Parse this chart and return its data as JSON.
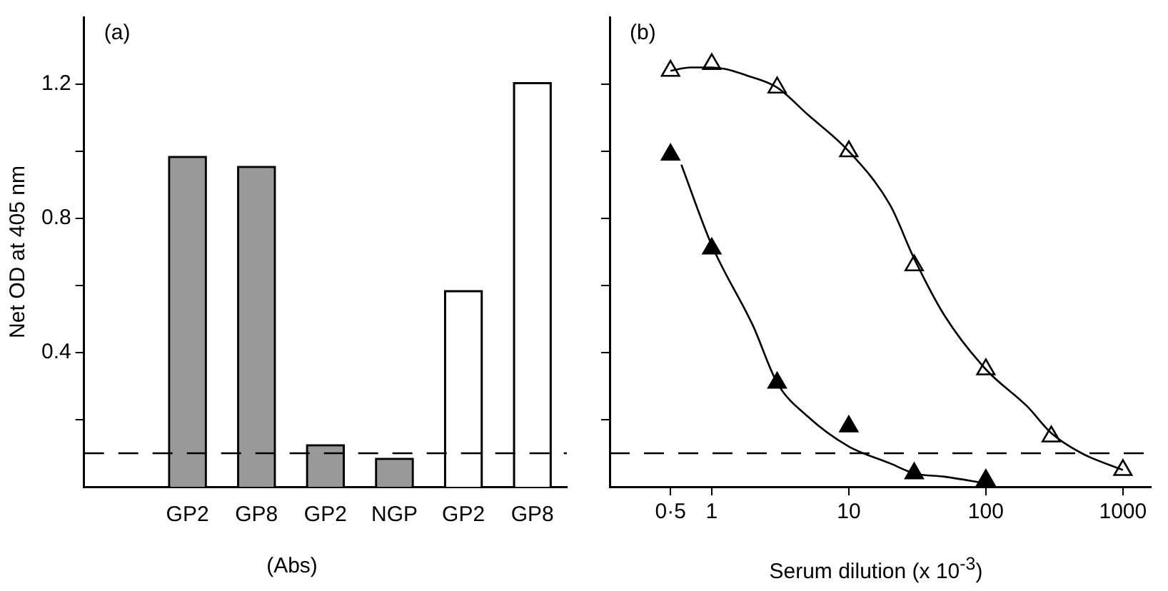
{
  "chart_data": [
    {
      "type": "bar",
      "annotations": [
        "(a)"
      ],
      "categories": [
        null,
        "GP2",
        "GP8",
        "GP2",
        "NGP",
        "GP2",
        "GP8"
      ],
      "values": [
        null,
        0.98,
        0.95,
        0.12,
        0.08,
        0.58,
        1.2
      ],
      "colors": [
        "#ffffff",
        "#999999",
        "#999999",
        "#999999",
        "#999999",
        "#ffffff",
        "#ffffff"
      ],
      "xlabel": "(Abs)",
      "ylabel": "Net OD at 405 nm",
      "ylim": [
        0,
        1.4
      ],
      "yticks": [
        {
          "value": 0.2,
          "label": null
        },
        0.4,
        {
          "value": 0.6,
          "label": null
        },
        0.8,
        {
          "value": 1.0,
          "label": null
        },
        1.2
      ],
      "ref_lines": [
        {
          "axis": "y",
          "value": 0.1,
          "line_style": "dashed"
        }
      ],
      "grid": false,
      "legend": false
    },
    {
      "type": "scatter",
      "annotations": [
        "(b)"
      ],
      "xlabel": "Serum dilution (x 10$^{-3}$)",
      "log": "x",
      "xlim": [
        0.18,
        1600
      ],
      "xticks": [
        {
          "value": 0.5,
          "label": "0·5"
        },
        1,
        10,
        100,
        1000
      ],
      "ylim": [
        0,
        1.4
      ],
      "yticks": [
        0.2,
        0.4,
        0.6,
        0.8,
        1.0,
        1.2
      ],
      "tick_labels": "x",
      "grid": false,
      "legend": false,
      "ref_lines": [
        {
          "axis": "y",
          "value": 0.1,
          "line_style": "dashed"
        }
      ],
      "series": [
        {
          "type": "line",
          "color": "#000000",
          "marker": "none",
          "x": [
            0.5,
            0.7,
            1,
            2,
            3,
            5,
            10,
            20,
            30,
            50,
            100,
            200,
            300,
            500,
            1000
          ],
          "values": [
            1.24,
            1.25,
            1.25,
            1.22,
            1.19,
            1.11,
            1.0,
            0.84,
            0.68,
            0.51,
            0.35,
            0.24,
            0.16,
            0.1,
            0.05
          ]
        },
        {
          "type": "line",
          "color": "#000000",
          "marker": "none",
          "x": [
            0.6,
            1,
            2,
            3,
            5,
            10,
            20,
            30,
            50,
            100
          ],
          "values": [
            0.96,
            0.72,
            0.48,
            0.31,
            0.21,
            0.12,
            0.07,
            0.04,
            0.03,
            0.01
          ]
        },
        {
          "type": "scatter",
          "color": "#ffffff",
          "marker": "triangle",
          "x": [
            0.5,
            1,
            3,
            10,
            30,
            100,
            300,
            1000
          ],
          "values": [
            1.24,
            1.26,
            1.19,
            1.0,
            0.66,
            0.35,
            0.15,
            0.05
          ]
        },
        {
          "type": "scatter",
          "color": "#000000",
          "marker": "triangle",
          "x": [
            0.5,
            1,
            3,
            10,
            30,
            100
          ],
          "values": [
            0.99,
            0.71,
            0.31,
            0.18,
            0.04,
            0.02
          ]
        }
      ]
    }
  ]
}
